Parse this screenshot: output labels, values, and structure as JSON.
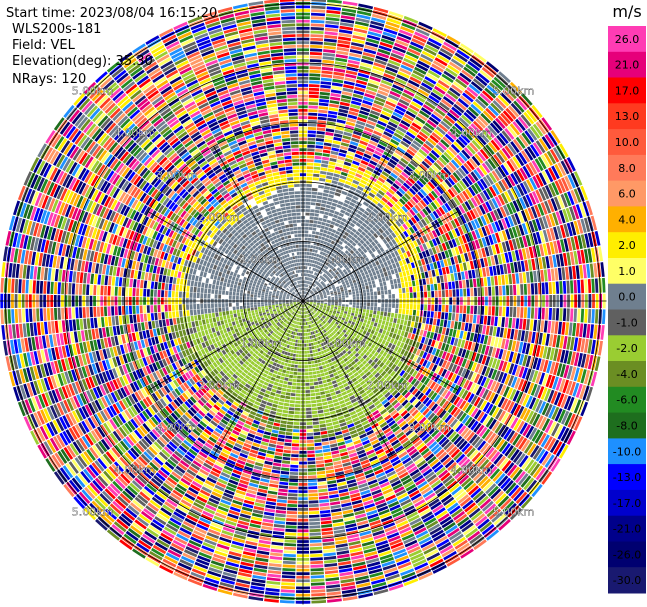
{
  "header": {
    "start_time": "Start time: 2023/08/04 16:15:20",
    "instrument": "WLS200s-181",
    "field": "Field: VEL",
    "elevation": "Elevation(deg): 35.30",
    "nrays": "NRays: 120"
  },
  "colorbar": {
    "unit": "m/s",
    "ticks": [
      "26.0",
      "21.0",
      "17.0",
      "13.0",
      "10.0",
      "8.0",
      "6.0",
      "4.0",
      "2.0",
      "1.0",
      "0.0",
      "-1.0",
      "-2.0",
      "-4.0",
      "-6.0",
      "-8.0",
      "-10.0",
      "-13.0",
      "-17.0",
      "-21.0",
      "-26.0",
      "-30.0"
    ],
    "colors": [
      "#ff3cb4",
      "#e6007a",
      "#ff0000",
      "#ff3a1f",
      "#ff5a3c",
      "#ff7a5a",
      "#ff9966",
      "#ffb000",
      "#ffee00",
      "#ffff66",
      "#6f7f8f",
      "#606060",
      "#9acd32",
      "#6b8e23",
      "#228b22",
      "#1e6e1e",
      "#1e90ff",
      "#0000ff",
      "#0000cd",
      "#00008b",
      "#000070",
      "#191970"
    ]
  },
  "chart_data": {
    "type": "ppi",
    "field": "VEL",
    "unit": "m/s",
    "nrays": 120,
    "elevation_deg": 35.3,
    "range_ring_labels": [
      "1.00km",
      "2.00km",
      "3.00km",
      "4.00km",
      "5.00km"
    ],
    "range_rings_km": [
      1,
      2,
      3,
      4,
      5
    ],
    "max_range_km": 5.1,
    "colorbar_min": -30.0,
    "colorbar_max": 26.0,
    "valid_data_max_range_km": 2.0,
    "near_wind_ms": [
      -1.0,
      1.5
    ],
    "noise_beyond_range": true
  }
}
